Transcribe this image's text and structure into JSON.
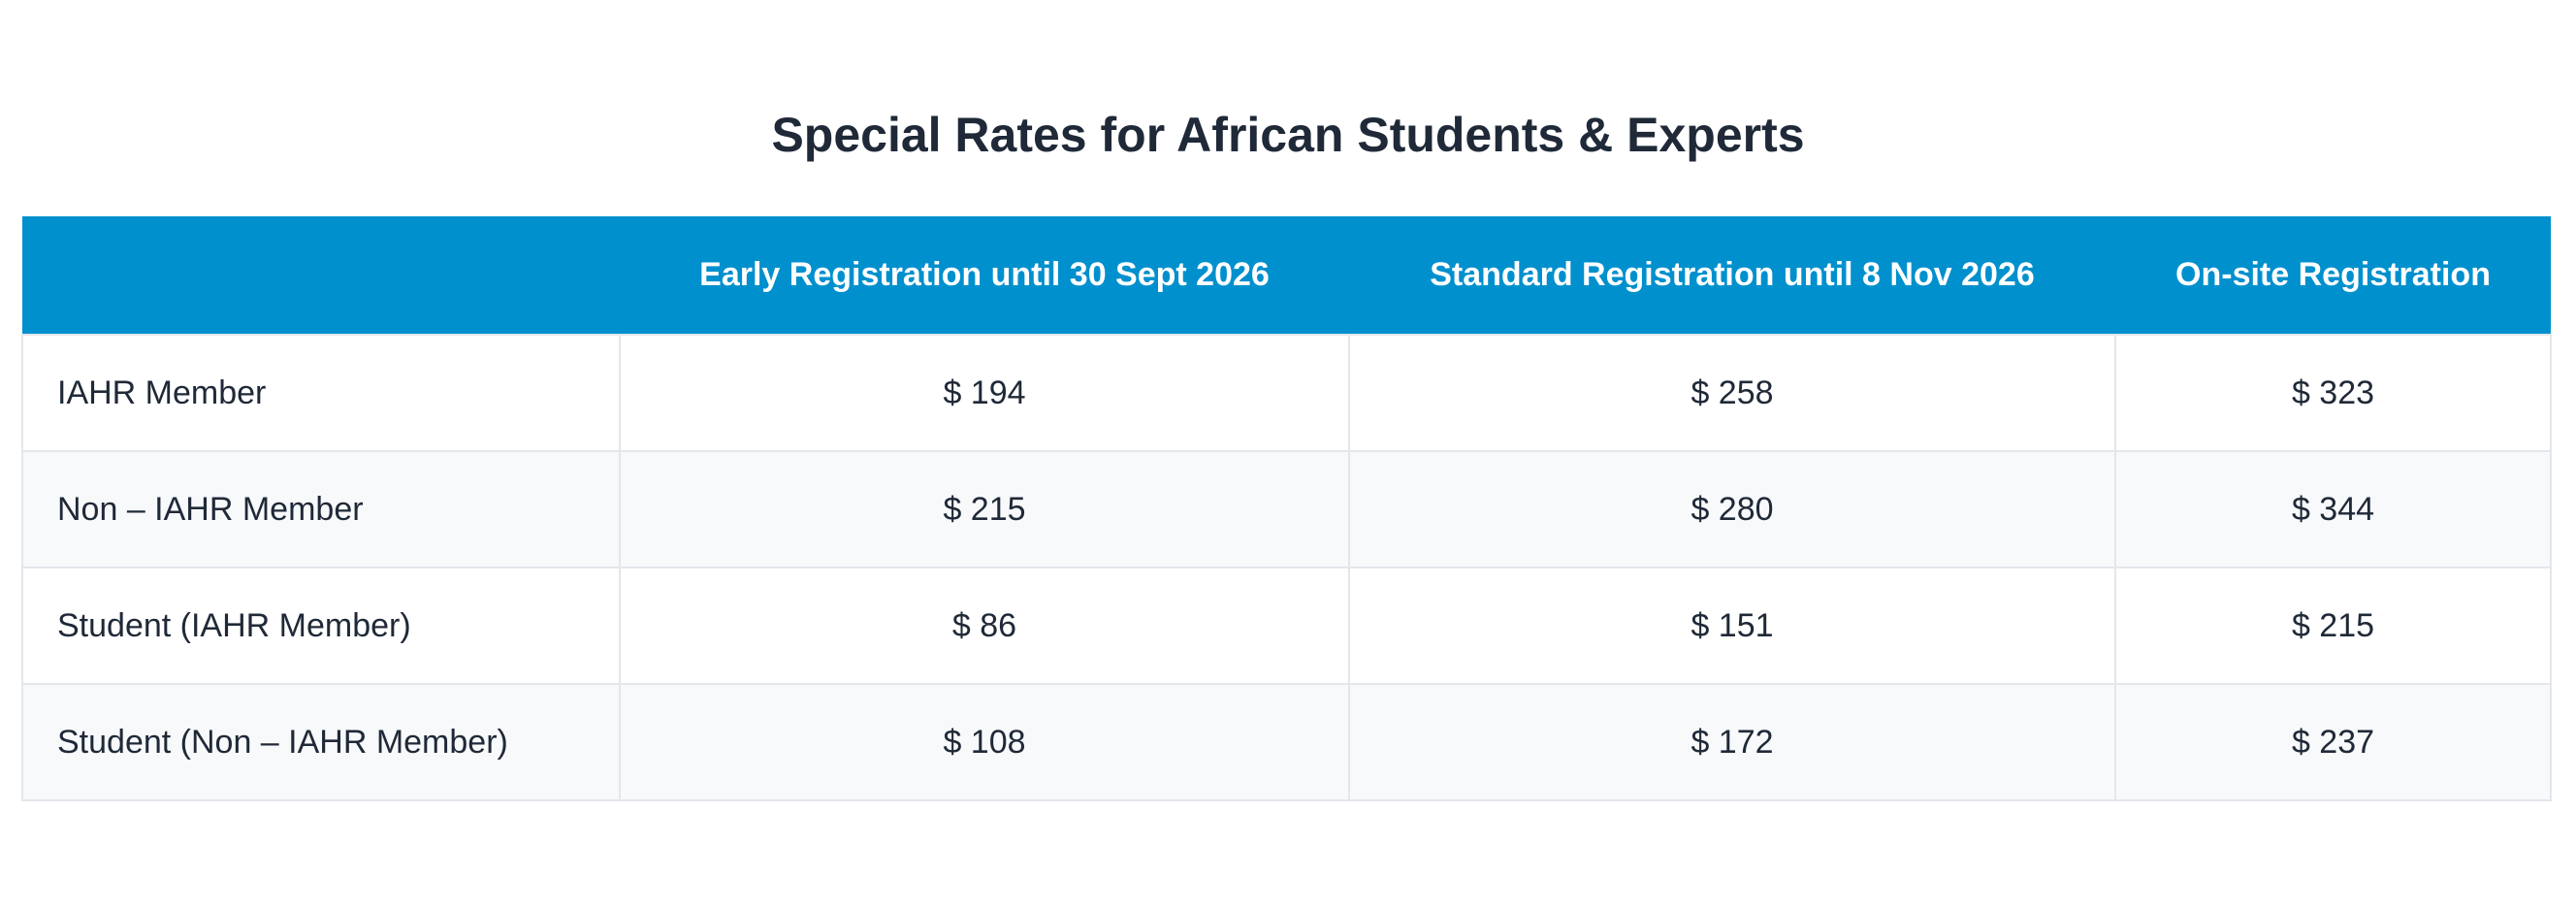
{
  "title": "Special Rates for African Students & Experts",
  "table": {
    "headers": [
      "",
      "Early Registration until 30 Sept 2026",
      "Standard Registration until 8 Nov 2026",
      "On-site Registration"
    ],
    "rows": [
      [
        "IAHR Member",
        "$ 194",
        "$ 258",
        "$ 323"
      ],
      [
        "Non – IAHR Member",
        "$ 215",
        "$ 280",
        "$ 344"
      ],
      [
        "Student (IAHR Member)",
        "$ 86",
        "$ 151",
        "$ 215"
      ],
      [
        "Student (Non – IAHR Member)",
        "$ 108",
        "$ 172",
        "$ 237"
      ]
    ]
  },
  "colors": {
    "header_background": "#0090cd",
    "header_text": "#ffffff",
    "body_text": "#1f2937",
    "row_alt_background": "#f8f9fb",
    "border": "#e3e7ec"
  }
}
